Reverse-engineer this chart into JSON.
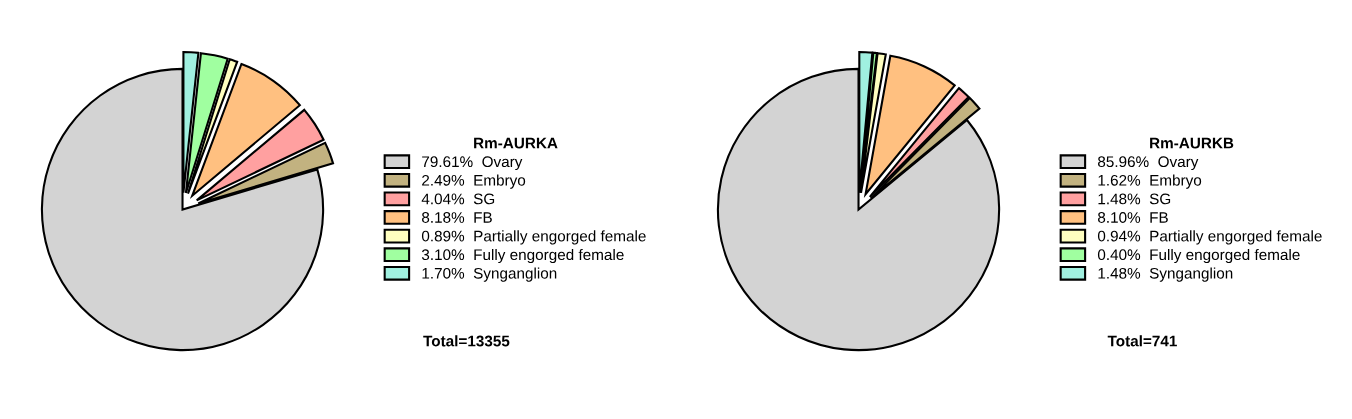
{
  "chart_data": [
    {
      "type": "pie",
      "title": "Rm-AURKA",
      "categories": [
        "Ovary",
        "Embryo",
        "SG",
        "FB",
        "Partially engorged female",
        "Fully engorged female",
        "Synganglion"
      ],
      "values": [
        79.61,
        2.49,
        4.04,
        8.18,
        0.89,
        3.1,
        1.7
      ],
      "value_labels": [
        "79.61%",
        "2.49%",
        "4.04%",
        "8.18%",
        "0.89%",
        "3.10%",
        "1.70%"
      ],
      "colors": [
        "#d3d3d3",
        "#c2b280",
        "#ffa0a0",
        "#ffc080",
        "#ffffc0",
        "#a0ffa0",
        "#a0f0e0"
      ],
      "legend": "right",
      "annotations": [
        "Total=13355"
      ]
    },
    {
      "type": "pie",
      "title": "Rm-AURKB",
      "categories": [
        "Ovary",
        "Embryo",
        "SG",
        "FB",
        "Partially engorged female",
        "Fully engorged female",
        "Synganglion"
      ],
      "values": [
        85.96,
        1.62,
        1.48,
        8.1,
        0.94,
        0.4,
        1.48
      ],
      "value_labels": [
        "85.96%",
        "1.62%",
        "1.48%",
        "8.10%",
        "0.94%",
        "0.40%",
        "1.48%"
      ],
      "colors": [
        "#d3d3d3",
        "#c2b280",
        "#ffa0a0",
        "#ffc080",
        "#ffffc0",
        "#a0ffa0",
        "#a0f0e0"
      ],
      "legend": "right",
      "annotations": [
        "Total=741"
      ]
    }
  ]
}
